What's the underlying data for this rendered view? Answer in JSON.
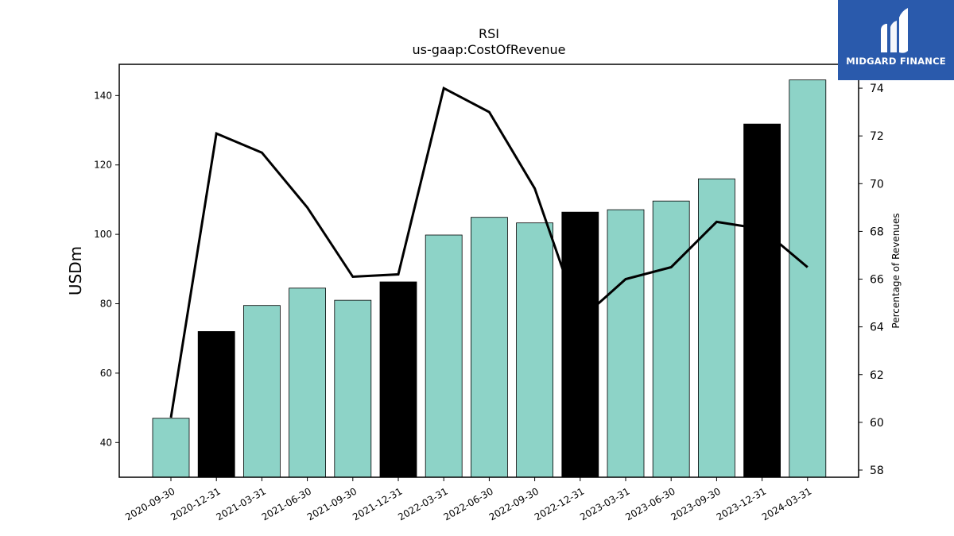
{
  "chart_data": {
    "type": "bar",
    "title": "RSI",
    "subtitle": "us-gaap:CostOfRevenue",
    "ylabel": "USDm",
    "y2label": "Percentage of Revenues",
    "categories": [
      "2020-09-30",
      "2020-12-31",
      "2021-03-31",
      "2021-06-30",
      "2021-09-30",
      "2021-12-31",
      "2022-03-31",
      "2022-06-30",
      "2022-09-30",
      "2022-12-31",
      "2023-03-31",
      "2023-06-30",
      "2023-09-30",
      "2023-12-31",
      "2024-03-31"
    ],
    "series": [
      {
        "type": "bar",
        "values": [
          47.0,
          72.0,
          79.5,
          84.5,
          81.0,
          86.3,
          99.8,
          104.9,
          103.3,
          106.4,
          107.1,
          109.6,
          116.0,
          131.8,
          144.5
        ],
        "colors": [
          "#8dd3c7",
          "#000000",
          "#8dd3c7",
          "#8dd3c7",
          "#8dd3c7",
          "#000000",
          "#8dd3c7",
          "#8dd3c7",
          "#8dd3c7",
          "#000000",
          "#8dd3c7",
          "#8dd3c7",
          "#8dd3c7",
          "#000000",
          "#8dd3c7"
        ]
      },
      {
        "type": "line",
        "axis": "right",
        "color": "#000000",
        "values": [
          60.2,
          72.1,
          71.3,
          69.0,
          66.1,
          66.2,
          74.0,
          73.0,
          69.8,
          64.3,
          66.0,
          66.5,
          68.4,
          68.1,
          66.5
        ]
      }
    ],
    "ylim": [
      30,
      149
    ],
    "y2lim": [
      57.7,
      75.0
    ],
    "yticks": [
      40,
      60,
      80,
      100,
      120,
      140
    ],
    "y2ticks": [
      58,
      60,
      62,
      64,
      66,
      68,
      70,
      72,
      74
    ],
    "grid": false
  },
  "logo": {
    "text": "MIDGARD FINANCE",
    "color": "#2a5aac"
  }
}
